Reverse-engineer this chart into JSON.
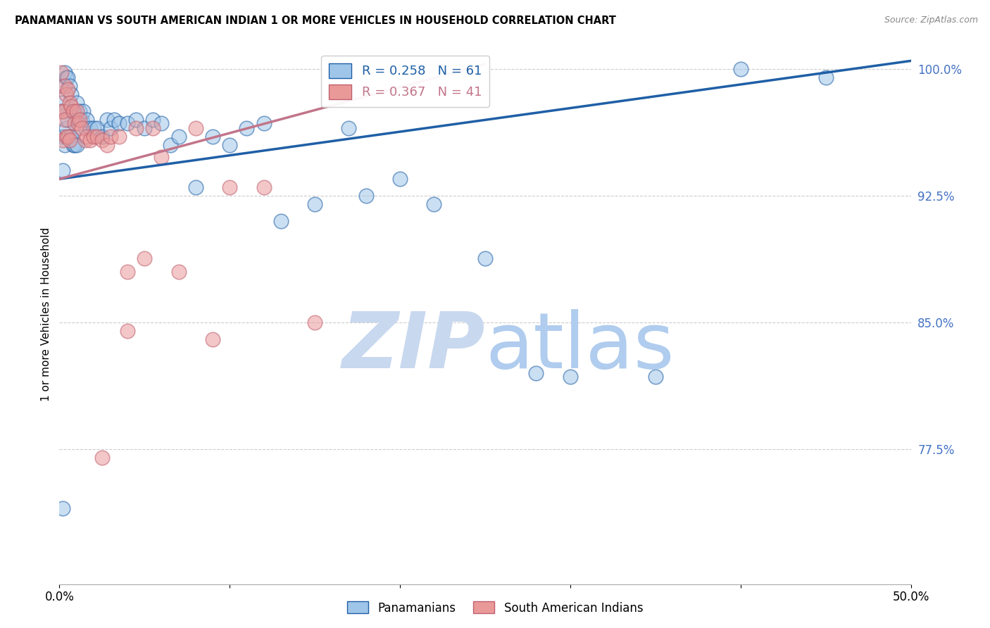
{
  "title": "PANAMANIAN VS SOUTH AMERICAN INDIAN 1 OR MORE VEHICLES IN HOUSEHOLD CORRELATION CHART",
  "source": "Source: ZipAtlas.com",
  "ylabel": "1 or more Vehicles in Household",
  "ylim": [
    0.695,
    1.015
  ],
  "xlim": [
    0.0,
    0.5
  ],
  "blue_color": "#9fc5e8",
  "pink_color": "#ea9999",
  "blue_line_color": "#1f5fa6",
  "pink_line_color": "#c2758a",
  "blue_R": 0.258,
  "blue_N": 61,
  "pink_R": 0.367,
  "pink_N": 41,
  "blue_line_x0": 0.0,
  "blue_line_y0": 0.935,
  "blue_line_x1": 0.5,
  "blue_line_y1": 1.005,
  "pink_line_x0": 0.0,
  "pink_line_y0": 0.935,
  "pink_line_x1": 0.25,
  "pink_line_y1": 1.003,
  "blue_scatter_x": [
    0.001,
    0.001,
    0.002,
    0.002,
    0.002,
    0.003,
    0.003,
    0.003,
    0.004,
    0.004,
    0.005,
    0.005,
    0.006,
    0.006,
    0.007,
    0.007,
    0.008,
    0.008,
    0.009,
    0.009,
    0.01,
    0.01,
    0.011,
    0.012,
    0.013,
    0.014,
    0.015,
    0.016,
    0.018,
    0.02,
    0.022,
    0.025,
    0.028,
    0.03,
    0.032,
    0.035,
    0.04,
    0.045,
    0.05,
    0.055,
    0.06,
    0.065,
    0.07,
    0.08,
    0.09,
    0.1,
    0.11,
    0.12,
    0.13,
    0.15,
    0.17,
    0.18,
    0.2,
    0.22,
    0.25,
    0.28,
    0.3,
    0.35,
    0.4,
    0.45,
    0.002
  ],
  "blue_scatter_y": [
    0.99,
    0.98,
    0.975,
    0.96,
    0.94,
    0.998,
    0.975,
    0.955,
    0.995,
    0.965,
    0.995,
    0.97,
    0.99,
    0.96,
    0.985,
    0.96,
    0.975,
    0.955,
    0.975,
    0.955,
    0.98,
    0.955,
    0.97,
    0.975,
    0.97,
    0.975,
    0.965,
    0.97,
    0.965,
    0.965,
    0.965,
    0.96,
    0.97,
    0.965,
    0.97,
    0.968,
    0.968,
    0.97,
    0.965,
    0.97,
    0.968,
    0.955,
    0.96,
    0.93,
    0.96,
    0.955,
    0.965,
    0.968,
    0.91,
    0.92,
    0.965,
    0.925,
    0.935,
    0.92,
    0.888,
    0.82,
    0.818,
    0.818,
    1.0,
    0.995,
    0.74
  ],
  "pink_scatter_x": [
    0.001,
    0.001,
    0.002,
    0.002,
    0.003,
    0.003,
    0.004,
    0.004,
    0.005,
    0.005,
    0.006,
    0.006,
    0.007,
    0.008,
    0.009,
    0.01,
    0.011,
    0.012,
    0.013,
    0.015,
    0.016,
    0.018,
    0.02,
    0.022,
    0.025,
    0.028,
    0.03,
    0.035,
    0.04,
    0.045,
    0.05,
    0.055,
    0.06,
    0.07,
    0.08,
    0.09,
    0.1,
    0.12,
    0.15,
    0.04,
    0.025
  ],
  "pink_scatter_y": [
    0.998,
    0.975,
    0.975,
    0.958,
    0.99,
    0.97,
    0.985,
    0.96,
    0.988,
    0.96,
    0.98,
    0.958,
    0.978,
    0.975,
    0.968,
    0.975,
    0.968,
    0.97,
    0.965,
    0.958,
    0.96,
    0.958,
    0.96,
    0.96,
    0.958,
    0.955,
    0.96,
    0.96,
    0.88,
    0.965,
    0.888,
    0.965,
    0.948,
    0.88,
    0.965,
    0.84,
    0.93,
    0.93,
    0.85,
    0.845,
    0.77
  ],
  "yticks": [
    0.775,
    0.85,
    0.925,
    1.0
  ],
  "ytick_labels": [
    "77.5%",
    "85.0%",
    "92.5%",
    "100.0%"
  ]
}
